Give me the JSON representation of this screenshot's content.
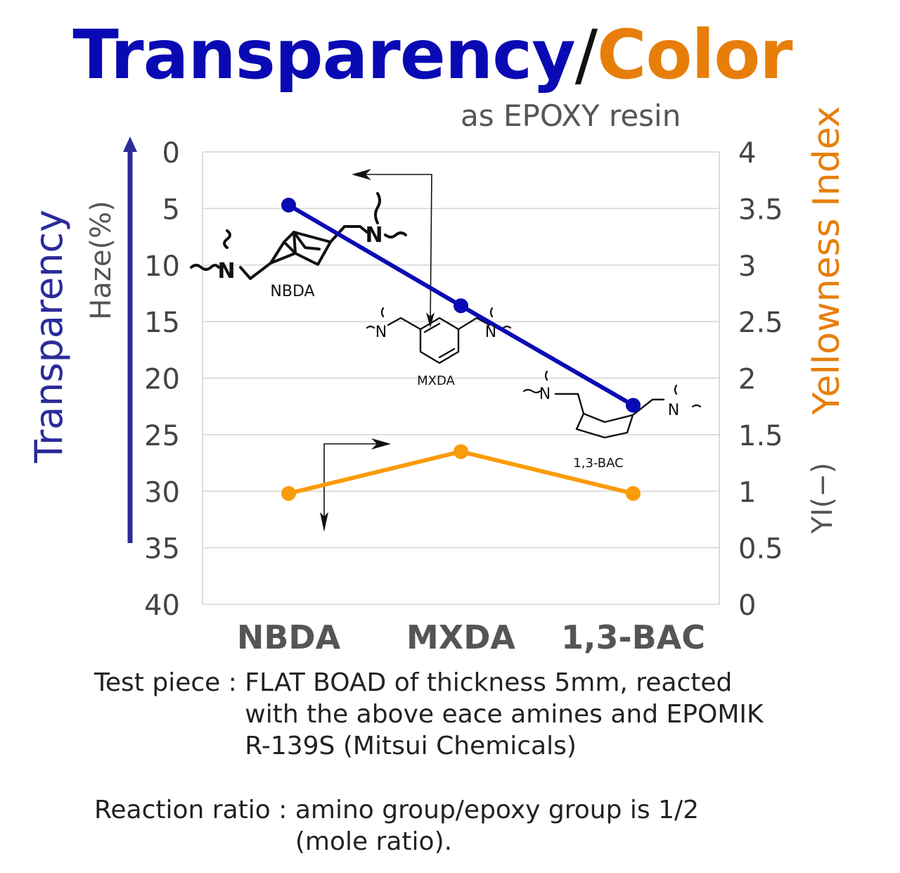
{
  "title": {
    "part1": "Transparency",
    "separator": "/",
    "part2": "Color",
    "part1_color": "#0a0ab4",
    "part2_color": "#e87e0a"
  },
  "subtitle": "as EPOXY resin",
  "chart_data": {
    "type": "line",
    "categories": [
      "NBDA",
      "MXDA",
      "1,3-BAC"
    ],
    "left_axis": {
      "label": "Haze(%)",
      "direction_label": "Transparency",
      "range": [
        0,
        40
      ],
      "inverted": true,
      "ticks": [
        "0",
        "5",
        "10",
        "15",
        "20",
        "25",
        "30",
        "35",
        "40"
      ]
    },
    "right_axis": {
      "label": "YI(−)",
      "title_label": "Yellowness Index",
      "range": [
        0,
        4
      ],
      "ticks": [
        "0",
        "0.5",
        "1",
        "1.5",
        "2",
        "2.5",
        "3",
        "3.5",
        "4"
      ]
    },
    "series": [
      {
        "axis": "left",
        "color": "#0a0ab4",
        "values": [
          4.7,
          13.6,
          22.4
        ]
      },
      {
        "axis": "right",
        "color": "#fa9b0a",
        "values": [
          0.98,
          1.35,
          0.98
        ]
      }
    ],
    "grid": "horizontal",
    "structure_labels": [
      "NBDA",
      "MXDA",
      "1,3-BAC"
    ],
    "nitrogen_symbol": "N"
  },
  "notes": {
    "test_piece_label": "Test piece : ",
    "test_piece_text": "FLAT BOAD of thickness 5mm, reacted\nwith the above eace amines and EPOMIK\nR-139S (Mitsui Chemicals)",
    "reaction_label": "Reaction ratio : ",
    "reaction_text": "amino group/epoxy group is 1/2\n(mole ratio)."
  }
}
